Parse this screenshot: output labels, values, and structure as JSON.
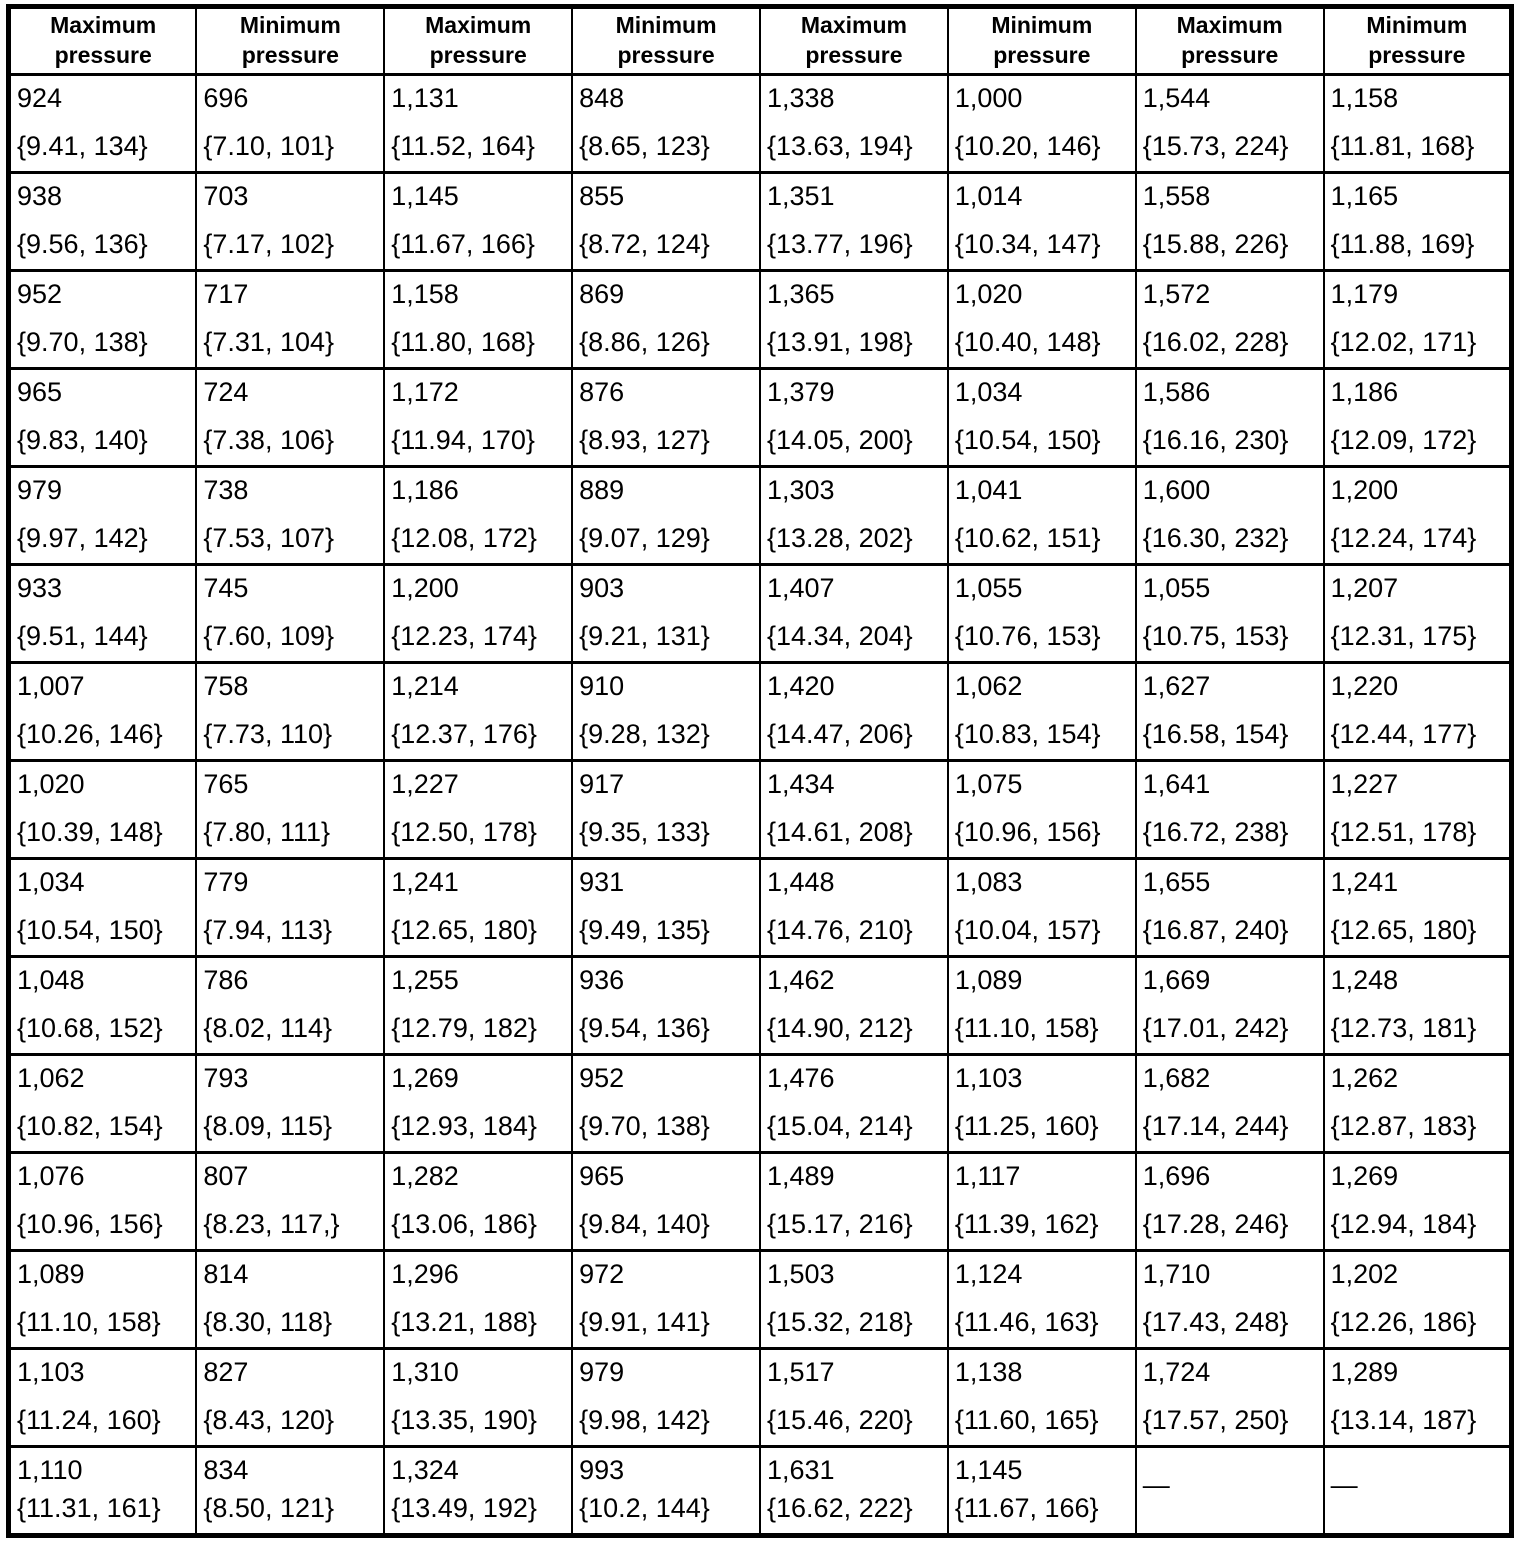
{
  "table": {
    "headers": [
      "Maximum pressure",
      "Minimum pressure",
      "Maximum pressure",
      "Minimum pressure",
      "Maximum pressure",
      "Minimum pressure",
      "Maximum pressure",
      "Minimum pressure"
    ],
    "rows": [
      [
        [
          "924",
          "{9.41, 134}"
        ],
        [
          "696",
          "{7.10, 101}"
        ],
        [
          "1,131",
          "{11.52, 164}"
        ],
        [
          "848",
          "{8.65, 123}"
        ],
        [
          "1,338",
          "{13.63, 194}"
        ],
        [
          "1,000",
          "{10.20, 146}"
        ],
        [
          "1,544",
          "{15.73, 224}"
        ],
        [
          "1,158",
          "{11.81, 168}"
        ]
      ],
      [
        [
          "938",
          "{9.56, 136}"
        ],
        [
          "703",
          "{7.17, 102}"
        ],
        [
          "1,145",
          "{11.67, 166}"
        ],
        [
          "855",
          "{8.72, 124}"
        ],
        [
          "1,351",
          "{13.77, 196}"
        ],
        [
          "1,014",
          "{10.34, 147}"
        ],
        [
          "1,558",
          "{15.88, 226}"
        ],
        [
          "1,165",
          "{11.88, 169}"
        ]
      ],
      [
        [
          "952",
          "{9.70, 138}"
        ],
        [
          "717",
          "{7.31, 104}"
        ],
        [
          "1,158",
          "{11.80, 168}"
        ],
        [
          "869",
          "{8.86, 126}"
        ],
        [
          "1,365",
          "{13.91, 198}"
        ],
        [
          "1,020",
          "{10.40, 148}"
        ],
        [
          "1,572",
          "{16.02, 228}"
        ],
        [
          "1,179",
          "{12.02, 171}"
        ]
      ],
      [
        [
          "965",
          "{9.83, 140}"
        ],
        [
          "724",
          "{7.38, 106}"
        ],
        [
          "1,172",
          "{11.94, 170}"
        ],
        [
          "876",
          "{8.93, 127}"
        ],
        [
          "1,379",
          "{14.05, 200}"
        ],
        [
          "1,034",
          "{10.54, 150}"
        ],
        [
          "1,586",
          "{16.16, 230}"
        ],
        [
          "1,186",
          "{12.09, 172}"
        ]
      ],
      [
        [
          "979",
          "{9.97, 142}"
        ],
        [
          "738",
          "{7.53, 107}"
        ],
        [
          "1,186",
          "{12.08, 172}"
        ],
        [
          "889",
          "{9.07, 129}"
        ],
        [
          "1,303",
          "{13.28, 202}"
        ],
        [
          "1,041",
          "{10.62, 151}"
        ],
        [
          "1,600",
          "{16.30, 232}"
        ],
        [
          "1,200",
          "{12.24, 174}"
        ]
      ],
      [
        [
          "933",
          "{9.51, 144}"
        ],
        [
          "745",
          "{7.60, 109}"
        ],
        [
          "1,200",
          "{12.23, 174}"
        ],
        [
          "903",
          "{9.21, 131}"
        ],
        [
          "1,407",
          "{14.34, 204}"
        ],
        [
          "1,055",
          "{10.76, 153}"
        ],
        [
          "1,055",
          "{10.75, 153}"
        ],
        [
          "1,207",
          "{12.31, 175}"
        ]
      ],
      [
        [
          "1,007",
          "{10.26, 146}"
        ],
        [
          "758",
          "{7.73, 110}"
        ],
        [
          "1,214",
          "{12.37, 176}"
        ],
        [
          "910",
          "{9.28, 132}"
        ],
        [
          "1,420",
          "{14.47, 206}"
        ],
        [
          "1,062",
          "{10.83, 154}"
        ],
        [
          "1,627",
          "{16.58, 154}"
        ],
        [
          "1,220",
          "{12.44, 177}"
        ]
      ],
      [
        [
          "1,020",
          "{10.39, 148}"
        ],
        [
          "765",
          "{7.80, 111}"
        ],
        [
          "1,227",
          "{12.50, 178}"
        ],
        [
          "917",
          "{9.35, 133}"
        ],
        [
          "1,434",
          "{14.61, 208}"
        ],
        [
          "1,075",
          "{10.96, 156}"
        ],
        [
          "1,641",
          "{16.72, 238}"
        ],
        [
          "1,227",
          "{12.51, 178}"
        ]
      ],
      [
        [
          "1,034",
          "{10.54, 150}"
        ],
        [
          "779",
          "{7.94, 113}"
        ],
        [
          "1,241",
          "{12.65, 180}"
        ],
        [
          "931",
          "{9.49, 135}"
        ],
        [
          "1,448",
          "{14.76, 210}"
        ],
        [
          "1,083",
          "{10.04, 157}"
        ],
        [
          "1,655",
          "{16.87, 240}"
        ],
        [
          "1,241",
          "{12.65, 180}"
        ]
      ],
      [
        [
          "1,048",
          "{10.68, 152}"
        ],
        [
          "786",
          "{8.02, 114}"
        ],
        [
          "1,255",
          "{12.79, 182}"
        ],
        [
          "936",
          "{9.54, 136}"
        ],
        [
          "1,462",
          "{14.90, 212}"
        ],
        [
          "1,089",
          "{11.10, 158}"
        ],
        [
          "1,669",
          "{17.01, 242}"
        ],
        [
          "1,248",
          "{12.73, 181}"
        ]
      ],
      [
        [
          "1,062",
          "{10.82, 154}"
        ],
        [
          "793",
          "{8.09, 115}"
        ],
        [
          "1,269",
          "{12.93, 184}"
        ],
        [
          "952",
          "{9.70, 138}"
        ],
        [
          "1,476",
          "{15.04, 214}"
        ],
        [
          "1,103",
          "{11.25, 160}"
        ],
        [
          "1,682",
          "{17.14, 244}"
        ],
        [
          "1,262",
          "{12.87, 183}"
        ]
      ],
      [
        [
          "1,076",
          "{10.96, 156}"
        ],
        [
          "807",
          "{8.23, 117,}"
        ],
        [
          "1,282",
          "{13.06, 186}"
        ],
        [
          "965",
          "{9.84, 140}"
        ],
        [
          "1,489",
          "{15.17, 216}"
        ],
        [
          "1,117",
          "{11.39, 162}"
        ],
        [
          "1,696",
          "{17.28, 246}"
        ],
        [
          "1,269",
          "{12.94, 184}"
        ]
      ],
      [
        [
          "1,089",
          "{11.10, 158}"
        ],
        [
          "814",
          "{8.30, 118}"
        ],
        [
          "1,296",
          "{13.21, 188}"
        ],
        [
          "972",
          "{9.91, 141}"
        ],
        [
          "1,503",
          "{15.32, 218}"
        ],
        [
          "1,124",
          "{11.46, 163}"
        ],
        [
          "1,710",
          "{17.43, 248}"
        ],
        [
          "1,202",
          "{12.26, 186}"
        ]
      ],
      [
        [
          "1,103",
          "{11.24, 160}"
        ],
        [
          "827",
          "{8.43, 120}"
        ],
        [
          "1,310",
          "{13.35, 190}"
        ],
        [
          "979",
          "{9.98, 142}"
        ],
        [
          "1,517",
          "{15.46, 220}"
        ],
        [
          "1,138",
          "{11.60, 165}"
        ],
        [
          "1,724",
          "{17.57, 250}"
        ],
        [
          "1,289",
          "{13.14, 187}"
        ]
      ],
      [
        [
          "1,110",
          "{11.31, 161}"
        ],
        [
          "834",
          "{8.50, 121}"
        ],
        [
          "1,324",
          "{13.49, 192}"
        ],
        [
          "993",
          "{10.2, 144}"
        ],
        [
          "1,631",
          "{16.62, 222}"
        ],
        [
          "1,145",
          "{11.67, 166}"
        ],
        [
          "—",
          null
        ],
        [
          "—",
          null
        ]
      ]
    ]
  }
}
